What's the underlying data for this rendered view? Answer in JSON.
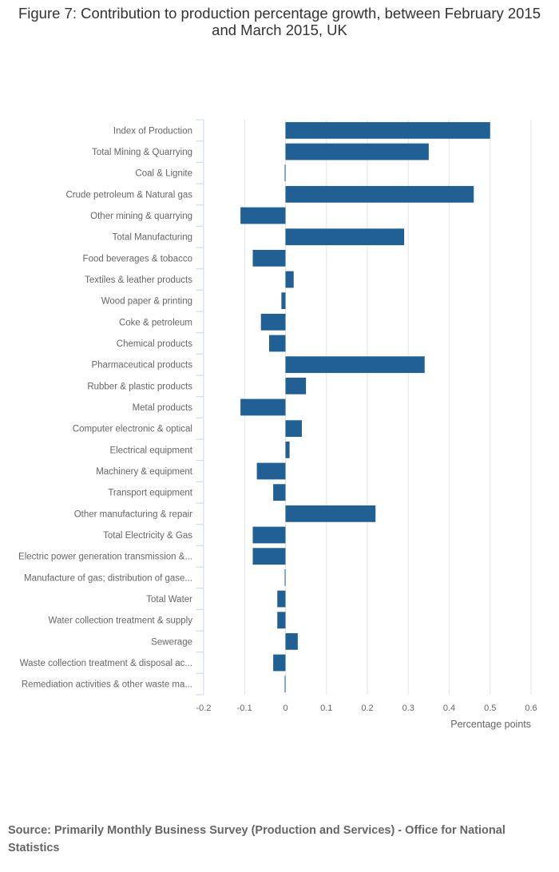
{
  "chart_data": {
    "type": "bar",
    "orientation": "horizontal",
    "title": "Figure 7: Contribution to production percentage growth, between February 2015 and March 2015, UK",
    "xlabel": "Percentage points",
    "ylabel": "",
    "xlim": [
      -0.2,
      0.6
    ],
    "xticks": [
      -0.2,
      -0.1,
      0,
      0.1,
      0.2,
      0.3,
      0.4,
      0.5,
      0.6
    ],
    "xtick_labels": [
      "-0.2",
      "-0.1",
      "0",
      "0.1",
      "0.2",
      "0.3",
      "0.4",
      "0.5",
      "0.6"
    ],
    "grid": true,
    "legend": "none",
    "bar_color": "#206095",
    "categories": [
      "Index of Production",
      "Total Mining & Quarrying",
      "Coal & Lignite",
      "Crude petroleum & Natural gas",
      "Other mining & quarrying",
      "Total Manufacturing",
      "Food beverages & tobacco",
      "Textiles & leather products",
      "Wood paper & printing",
      "Coke & petroleum",
      "Chemical products",
      "Pharmaceutical products",
      "Rubber & plastic products",
      "Metal products",
      "Computer electronic & optical",
      "Electrical equipment",
      "Machinery & equipment",
      "Transport equipment",
      "Other manufacturing & repair",
      "Total Electricity & Gas",
      "Electric power generation transmission &...",
      "Manufacture of gas; distribution of gase...",
      "Total Water",
      "Water collection treatment & supply",
      "Sewerage",
      "Waste collection treatment & disposal ac...",
      "Remediation activities & other waste ma..."
    ],
    "values": [
      0.5,
      0.35,
      -0.002,
      0.46,
      -0.11,
      0.29,
      -0.08,
      0.02,
      -0.01,
      -0.06,
      -0.04,
      0.34,
      0.05,
      -0.11,
      0.04,
      0.01,
      -0.07,
      -0.03,
      0.22,
      -0.08,
      -0.08,
      -0.001,
      -0.02,
      -0.02,
      0.03,
      -0.03,
      -0.001
    ]
  },
  "source": "Source: Primarily Monthly Business Survey (Production and Services) - Office for National Statistics"
}
